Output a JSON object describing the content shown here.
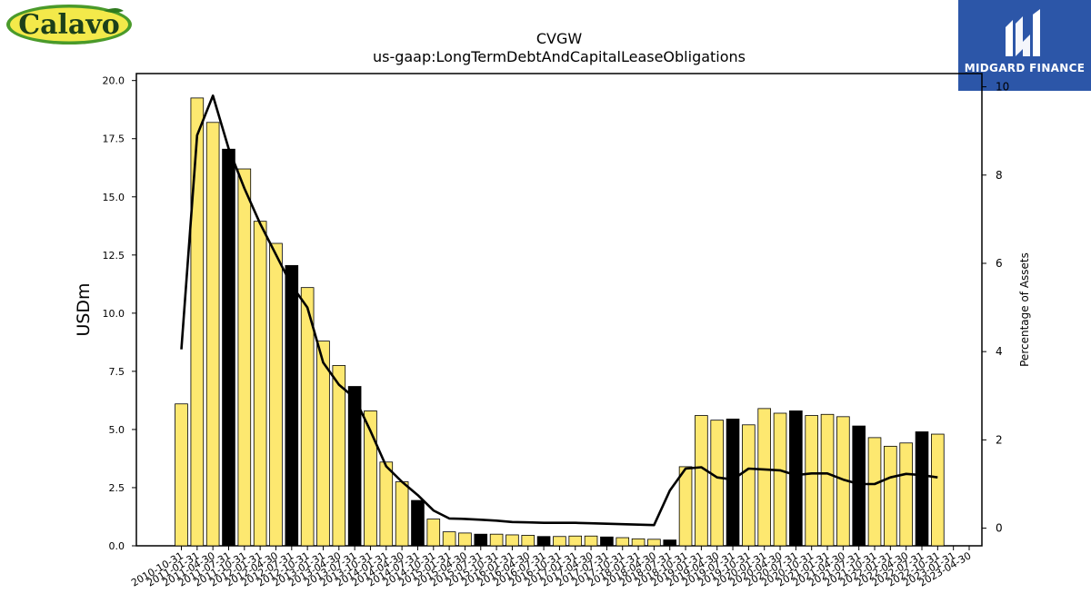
{
  "brand": {
    "left_logo_text": "Calavo",
    "right_logo_text": "MIDGARD FINANCE",
    "left_logo_colors": {
      "yellow": "#f3e94a",
      "green": "#4a9a2a",
      "text": "#1c3f1a"
    },
    "right_logo_color": "#2c56a8"
  },
  "chart_data": {
    "type": "bar",
    "title": "CVGW",
    "subtitle": "us-gaap:LongTermDebtAndCapitalLeaseObligations",
    "ylabel": "USDm",
    "y2label": "Percentage of Assets",
    "ylim": [
      0,
      20.3
    ],
    "y2lim": [
      -0.4,
      10.3
    ],
    "yticks": [
      "0.0",
      "2.5",
      "5.0",
      "7.5",
      "10.0",
      "12.5",
      "15.0",
      "17.5",
      "20.0"
    ],
    "y2ticks": [
      "0",
      "2",
      "4",
      "6",
      "8",
      "10"
    ],
    "bar_color": "#fde870",
    "highlight_color": "#000000",
    "line_color": "#000000",
    "categories": [
      "2010-10-31",
      "2011-01-31",
      "2011-04-30",
      "2011-07-31",
      "2011-10-31",
      "2012-01-31",
      "2012-04-30",
      "2012-07-31",
      "2012-10-31",
      "2013-01-31",
      "2013-04-30",
      "2013-07-31",
      "2013-10-31",
      "2014-01-31",
      "2014-04-30",
      "2014-07-31",
      "2014-10-31",
      "2015-01-31",
      "2015-04-30",
      "2015-07-31",
      "2015-10-31",
      "2016-01-31",
      "2016-04-30",
      "2016-07-31",
      "2016-10-31",
      "2017-01-31",
      "2017-04-30",
      "2017-07-31",
      "2017-10-31",
      "2018-01-31",
      "2018-04-30",
      "2018-07-31",
      "2018-10-31",
      "2019-01-31",
      "2019-04-30",
      "2019-07-31",
      "2019-10-31",
      "2020-01-31",
      "2020-04-30",
      "2020-07-31",
      "2020-10-31",
      "2021-01-31",
      "2021-04-30",
      "2021-07-31",
      "2021-10-31",
      "2022-01-31",
      "2022-04-30",
      "2022-07-31",
      "2022-10-31",
      "2023-01-31",
      "2023-04-30"
    ],
    "series": [
      {
        "name": "",
        "type": "bar",
        "values": [
          6.1,
          19.25,
          18.2,
          17.05,
          16.2,
          13.95,
          13.0,
          12.05,
          11.1,
          8.8,
          7.75,
          6.85,
          5.8,
          3.6,
          2.75,
          1.95,
          1.15,
          0.6,
          0.55,
          0.5,
          0.5,
          0.47,
          0.45,
          0.4,
          0.4,
          0.42,
          0.42,
          0.38,
          0.35,
          0.3,
          0.28,
          0.25,
          3.4,
          5.6,
          5.4,
          5.45,
          5.2,
          5.9,
          5.7,
          5.8,
          5.6,
          5.65,
          5.55,
          5.15,
          4.65,
          4.28,
          4.42,
          4.9,
          4.8,
          0,
          0
        ],
        "highlight": [
          false,
          false,
          false,
          true,
          false,
          false,
          false,
          true,
          false,
          false,
          false,
          true,
          false,
          false,
          false,
          true,
          false,
          false,
          false,
          true,
          false,
          false,
          false,
          true,
          false,
          false,
          false,
          true,
          false,
          false,
          false,
          true,
          false,
          false,
          false,
          true,
          false,
          false,
          false,
          true,
          false,
          false,
          false,
          true,
          false,
          false,
          false,
          true,
          false,
          false,
          false
        ]
      },
      {
        "name": "",
        "type": "line",
        "axis": "y2",
        "values": [
          4.05,
          8.9,
          9.8,
          8.6,
          7.7,
          6.9,
          6.2,
          5.5,
          5.0,
          3.75,
          3.25,
          2.95,
          2.2,
          1.4,
          1.05,
          0.75,
          0.4,
          0.22,
          0.21,
          0.19,
          0.17,
          0.14,
          0.13,
          0.12,
          0.12,
          0.12,
          0.11,
          0.1,
          0.09,
          0.08,
          0.07,
          0.85,
          1.35,
          1.38,
          1.15,
          1.1,
          1.35,
          1.33,
          1.31,
          1.2,
          1.24,
          1.24,
          1.1,
          1.0,
          1.0,
          1.15,
          1.23,
          1.2,
          1.15,
          null,
          null
        ]
      }
    ]
  }
}
